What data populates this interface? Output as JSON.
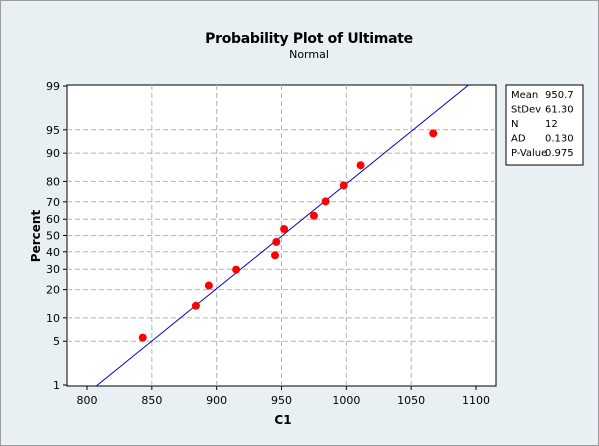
{
  "chart_data": {
    "type": "scatter",
    "title": "Probability Plot of Ultimate",
    "subtitle": "Normal",
    "xlabel": "C1",
    "ylabel": "Percent",
    "xlim": [
      800,
      1100
    ],
    "x_ticks": [
      800,
      850,
      900,
      950,
      1000,
      1050,
      1100
    ],
    "y_scale": "normal-probability",
    "y_ticks": [
      1,
      5,
      10,
      20,
      30,
      40,
      50,
      60,
      70,
      80,
      90,
      95,
      99
    ],
    "grid": true,
    "points": [
      {
        "x": 843,
        "y": 5.6
      },
      {
        "x": 884,
        "y": 13.7
      },
      {
        "x": 894,
        "y": 21.8
      },
      {
        "x": 915,
        "y": 29.8
      },
      {
        "x": 945,
        "y": 37.9
      },
      {
        "x": 946,
        "y": 46.0
      },
      {
        "x": 952,
        "y": 54.0
      },
      {
        "x": 975,
        "y": 62.1
      },
      {
        "x": 984,
        "y": 70.2
      },
      {
        "x": 998,
        "y": 78.2
      },
      {
        "x": 1011,
        "y": 86.3
      },
      {
        "x": 1067,
        "y": 94.4
      }
    ],
    "fit_line": {
      "mean": 950.7,
      "stdev": 61.3
    },
    "stats": [
      {
        "label": "Mean",
        "value": "950.7"
      },
      {
        "label": "StDev",
        "value": "61.30"
      },
      {
        "label": "N",
        "value": "12"
      },
      {
        "label": "AD",
        "value": "0.130"
      },
      {
        "label": "P-Value",
        "value": "0.975"
      }
    ],
    "colors": {
      "points": "#ff0000",
      "fit_line": "#0000cc",
      "grid": "#b4b4b4"
    }
  }
}
